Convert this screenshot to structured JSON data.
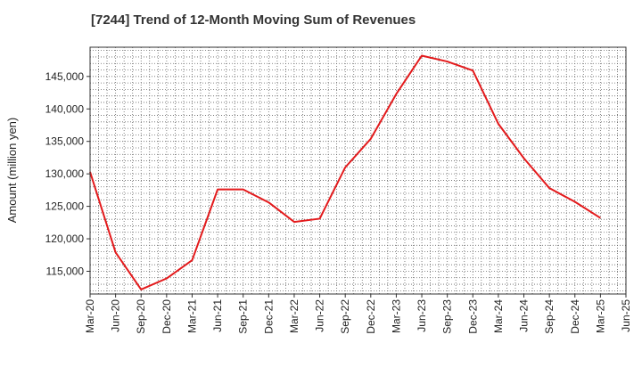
{
  "chart_data": {
    "type": "line",
    "title": "[7244]  Trend of 12-Month Moving Sum of Revenues",
    "ylabel": "Amount (million yen)",
    "xlabel": "",
    "ylim": [
      111500,
      149500
    ],
    "yticks": [
      115000,
      120000,
      125000,
      130000,
      135000,
      140000,
      145000
    ],
    "ytick_labels": [
      "115,000",
      "120,000",
      "125,000",
      "130,000",
      "135,000",
      "140,000",
      "145,000"
    ],
    "categories": [
      "Mar-20",
      "Jun-20",
      "Sep-20",
      "Dec-20",
      "Mar-21",
      "Jun-21",
      "Sep-21",
      "Dec-21",
      "Mar-22",
      "Jun-22",
      "Sep-22",
      "Dec-22",
      "Mar-23",
      "Jun-23",
      "Sep-23",
      "Dec-23",
      "Mar-24",
      "Jun-24",
      "Sep-24",
      "Dec-24",
      "Mar-25",
      "Jun-25"
    ],
    "series": [
      {
        "color": "#e31a1c",
        "values": [
          130300,
          117900,
          112200,
          113900,
          116700,
          127600,
          127600,
          125600,
          122600,
          123100,
          131000,
          135400,
          142300,
          148200,
          147300,
          145900,
          137700,
          132400,
          127800,
          125700,
          123200,
          null
        ]
      }
    ],
    "grid": true,
    "legend": "none"
  }
}
